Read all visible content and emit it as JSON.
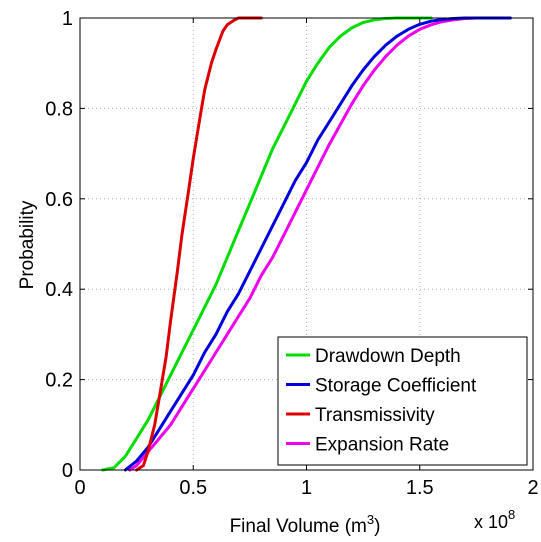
{
  "chart_data": {
    "type": "line",
    "xlabel": "Final Volume (m",
    "xlabel_sup": "3",
    "xlabel_end": ")",
    "x_multiplier": "x 10",
    "x_multiplier_exp": "8",
    "ylabel": "Probability",
    "xlim": [
      0,
      2
    ],
    "ylim": [
      0,
      1
    ],
    "x_ticks": [
      "0",
      "0.5",
      "1",
      "1.5",
      "2"
    ],
    "y_ticks": [
      "0",
      "0.2",
      "0.4",
      "0.6",
      "0.8",
      "1"
    ],
    "grid": true,
    "legend_position": "bottom-right",
    "series": [
      {
        "name": "Drawdown Depth",
        "color": "#00dd00",
        "x": [
          0.1,
          0.15,
          0.2,
          0.25,
          0.3,
          0.35,
          0.4,
          0.45,
          0.5,
          0.55,
          0.6,
          0.65,
          0.7,
          0.75,
          0.8,
          0.85,
          0.9,
          0.95,
          1.0,
          1.05,
          1.1,
          1.15,
          1.2,
          1.25,
          1.3,
          1.35,
          1.4,
          1.45,
          1.5,
          1.55
        ],
        "y": [
          0.0,
          0.005,
          0.03,
          0.07,
          0.11,
          0.16,
          0.21,
          0.26,
          0.31,
          0.36,
          0.41,
          0.47,
          0.53,
          0.59,
          0.65,
          0.71,
          0.76,
          0.81,
          0.86,
          0.9,
          0.935,
          0.96,
          0.978,
          0.99,
          0.996,
          0.999,
          1.0,
          1.0,
          1.0,
          1.0
        ]
      },
      {
        "name": "Storage Coefficient",
        "color": "#0000dd",
        "x": [
          0.2,
          0.25,
          0.3,
          0.35,
          0.4,
          0.45,
          0.5,
          0.55,
          0.6,
          0.65,
          0.7,
          0.75,
          0.8,
          0.85,
          0.9,
          0.95,
          1.0,
          1.05,
          1.1,
          1.15,
          1.2,
          1.25,
          1.3,
          1.35,
          1.4,
          1.45,
          1.5,
          1.55,
          1.6,
          1.65,
          1.7,
          1.75,
          1.8,
          1.85,
          1.9
        ],
        "y": [
          0.0,
          0.02,
          0.05,
          0.09,
          0.13,
          0.17,
          0.21,
          0.26,
          0.3,
          0.35,
          0.39,
          0.44,
          0.49,
          0.54,
          0.59,
          0.64,
          0.68,
          0.73,
          0.77,
          0.81,
          0.85,
          0.885,
          0.915,
          0.94,
          0.96,
          0.975,
          0.986,
          0.993,
          0.997,
          0.999,
          1.0,
          1.0,
          1.0,
          1.0,
          1.0
        ]
      },
      {
        "name": "Transmissivity",
        "color": "#dd0000",
        "x": [
          0.25,
          0.28,
          0.3,
          0.33,
          0.35,
          0.38,
          0.4,
          0.43,
          0.45,
          0.48,
          0.5,
          0.53,
          0.55,
          0.58,
          0.6,
          0.63,
          0.65,
          0.68,
          0.7,
          0.75,
          0.8
        ],
        "y": [
          0.0,
          0.01,
          0.04,
          0.1,
          0.16,
          0.25,
          0.33,
          0.44,
          0.52,
          0.62,
          0.69,
          0.78,
          0.84,
          0.9,
          0.93,
          0.97,
          0.985,
          0.995,
          1.0,
          1.0,
          1.0
        ]
      },
      {
        "name": "Expansion Rate",
        "color": "#ee00ee",
        "x": [
          0.22,
          0.25,
          0.3,
          0.35,
          0.4,
          0.45,
          0.5,
          0.55,
          0.6,
          0.65,
          0.7,
          0.75,
          0.8,
          0.85,
          0.9,
          0.95,
          1.0,
          1.05,
          1.1,
          1.15,
          1.2,
          1.25,
          1.3,
          1.35,
          1.4,
          1.45,
          1.5,
          1.55,
          1.6,
          1.65,
          1.7,
          1.75,
          1.8,
          1.85,
          1.9
        ],
        "y": [
          0.0,
          0.01,
          0.04,
          0.07,
          0.1,
          0.14,
          0.18,
          0.22,
          0.26,
          0.3,
          0.34,
          0.38,
          0.43,
          0.47,
          0.52,
          0.57,
          0.62,
          0.67,
          0.72,
          0.765,
          0.81,
          0.85,
          0.885,
          0.915,
          0.94,
          0.96,
          0.975,
          0.985,
          0.992,
          0.996,
          0.999,
          1.0,
          1.0,
          1.0,
          1.0
        ]
      }
    ]
  }
}
